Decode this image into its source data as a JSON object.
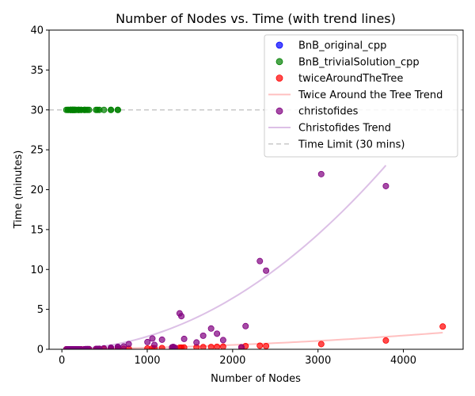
{
  "chart_data": {
    "type": "scatter",
    "title": "Number of Nodes vs. Time (with trend lines)",
    "xlabel": "Number of Nodes",
    "ylabel": "Time (minutes)",
    "xlim": [
      -150,
      4700
    ],
    "ylim": [
      0,
      40
    ],
    "xticks": [
      0,
      1000,
      2000,
      3000,
      4000
    ],
    "yticks": [
      0,
      5,
      10,
      15,
      20,
      25,
      30,
      35,
      40
    ],
    "grid": false,
    "legend_position": "top-right",
    "time_limit": 30,
    "series": [
      {
        "name": "BnB_original_cpp",
        "kind": "scatter",
        "color": "#0000ff",
        "points": []
      },
      {
        "name": "BnB_trivialSolution_cpp",
        "kind": "scatter",
        "color": "#008000",
        "points": [
          [
            52,
            30
          ],
          [
            70,
            30
          ],
          [
            76,
            30
          ],
          [
            96,
            30
          ],
          [
            99,
            30
          ],
          [
            105,
            30
          ],
          [
            107,
            30
          ],
          [
            120,
            30
          ],
          [
            124,
            30
          ],
          [
            127,
            30
          ],
          [
            130,
            30
          ],
          [
            136,
            30
          ],
          [
            144,
            30
          ],
          [
            150,
            30
          ],
          [
            152,
            30
          ],
          [
            159,
            30
          ],
          [
            175,
            30
          ],
          [
            195,
            30
          ],
          [
            198,
            30
          ],
          [
            200,
            30
          ],
          [
            225,
            30
          ],
          [
            226,
            30
          ],
          [
            262,
            30
          ],
          [
            264,
            30
          ],
          [
            280,
            30
          ],
          [
            299,
            30
          ],
          [
            318,
            30
          ],
          [
            400,
            30
          ],
          [
            417,
            30
          ],
          [
            439,
            30
          ],
          [
            493,
            30
          ],
          [
            574,
            30
          ],
          [
            575,
            30
          ],
          [
            654,
            30
          ],
          [
            657,
            30
          ]
        ]
      },
      {
        "name": "twiceAroundTheTree",
        "kind": "scatter",
        "color": "#ff0000",
        "points": [
          [
            52,
            0
          ],
          [
            70,
            0
          ],
          [
            76,
            0
          ],
          [
            96,
            0
          ],
          [
            100,
            0
          ],
          [
            105,
            0
          ],
          [
            120,
            0
          ],
          [
            127,
            0
          ],
          [
            130,
            0
          ],
          [
            136,
            0
          ],
          [
            150,
            0
          ],
          [
            152,
            0
          ],
          [
            159,
            0
          ],
          [
            175,
            0
          ],
          [
            195,
            0
          ],
          [
            200,
            0
          ],
          [
            225,
            0
          ],
          [
            262,
            0
          ],
          [
            280,
            0
          ],
          [
            299,
            0.01
          ],
          [
            318,
            0.01
          ],
          [
            400,
            0.02
          ],
          [
            417,
            0.02
          ],
          [
            439,
            0.02
          ],
          [
            493,
            0.03
          ],
          [
            574,
            0.04
          ],
          [
            575,
            0.04
          ],
          [
            654,
            0.05
          ],
          [
            657,
            0.05
          ],
          [
            724,
            0.06
          ],
          [
            783,
            0.07
          ],
          [
            1002,
            0.1
          ],
          [
            1060,
            0.12
          ],
          [
            1084,
            0.13
          ],
          [
            1173,
            0.15
          ],
          [
            1291,
            0.18
          ],
          [
            1304,
            0.18
          ],
          [
            1323,
            0.19
          ],
          [
            1379,
            0.2
          ],
          [
            1400,
            0.21
          ],
          [
            1432,
            0.22
          ],
          [
            1577,
            0.25
          ],
          [
            1655,
            0.27
          ],
          [
            1748,
            0.29
          ],
          [
            1817,
            0.31
          ],
          [
            1889,
            0.33
          ],
          [
            2103,
            0.25
          ],
          [
            2152,
            0.4
          ],
          [
            2319,
            0.45
          ],
          [
            2392,
            0.4
          ],
          [
            3038,
            0.65
          ],
          [
            3795,
            1.1
          ],
          [
            4461,
            2.85
          ]
        ]
      },
      {
        "name": "christofides",
        "kind": "scatter",
        "color": "#800080",
        "points": [
          [
            52,
            0
          ],
          [
            70,
            0
          ],
          [
            76,
            0
          ],
          [
            96,
            0
          ],
          [
            100,
            0
          ],
          [
            105,
            0
          ],
          [
            120,
            0
          ],
          [
            127,
            0
          ],
          [
            130,
            0
          ],
          [
            136,
            0
          ],
          [
            150,
            0
          ],
          [
            152,
            0
          ],
          [
            159,
            0
          ],
          [
            175,
            0
          ],
          [
            195,
            0
          ],
          [
            200,
            0
          ],
          [
            225,
            0
          ],
          [
            262,
            0
          ],
          [
            280,
            0.02
          ],
          [
            299,
            0.02
          ],
          [
            318,
            0.03
          ],
          [
            400,
            0.05
          ],
          [
            417,
            0.05
          ],
          [
            439,
            0.06
          ],
          [
            493,
            0.12
          ],
          [
            574,
            0.18
          ],
          [
            575,
            0.2
          ],
          [
            654,
            0.3
          ],
          [
            657,
            0.28
          ],
          [
            724,
            0.35
          ],
          [
            783,
            0.65
          ],
          [
            1002,
            0.9
          ],
          [
            1060,
            1.35
          ],
          [
            1084,
            0.55
          ],
          [
            1173,
            1.2
          ],
          [
            1291,
            0.25
          ],
          [
            1304,
            0.3
          ],
          [
            1323,
            0.2
          ],
          [
            1379,
            4.5
          ],
          [
            1400,
            4.15
          ],
          [
            1432,
            1.3
          ],
          [
            1577,
            0.85
          ],
          [
            1655,
            1.7
          ],
          [
            1748,
            2.6
          ],
          [
            1817,
            1.95
          ],
          [
            1889,
            1.15
          ],
          [
            2103,
            0.25
          ],
          [
            2152,
            2.9
          ],
          [
            2319,
            11.05
          ],
          [
            2392,
            9.85
          ],
          [
            3038,
            21.95
          ],
          [
            3795,
            20.45
          ]
        ]
      }
    ],
    "trends": [
      {
        "name": "Twice Around the Tree Trend",
        "color": "#ffc0c0",
        "coeffs": [
          0.0,
          0.00011,
          8e-08
        ],
        "x_range": [
          52,
          4461
        ]
      },
      {
        "name": "Christofides Trend",
        "color": "#dcc0e6",
        "coeffs": [
          0.0,
          0.0,
          1.6e-06
        ],
        "x_range": [
          52,
          3795
        ]
      }
    ],
    "legend": [
      {
        "label": "BnB_original_cpp",
        "kind": "marker",
        "color": "#0000ff"
      },
      {
        "label": "BnB_trivialSolution_cpp",
        "kind": "marker",
        "color": "#008000"
      },
      {
        "label": "twiceAroundTheTree",
        "kind": "marker",
        "color": "#ff0000"
      },
      {
        "label": "Twice Around the Tree Trend",
        "kind": "line",
        "color": "#ffc0c0"
      },
      {
        "label": "christofides",
        "kind": "marker",
        "color": "#800080"
      },
      {
        "label": "Christofides Trend",
        "kind": "line",
        "color": "#dcc0e6"
      },
      {
        "label": "Time Limit (30 mins)",
        "kind": "dashed",
        "color": "#c8c8c8"
      }
    ]
  }
}
